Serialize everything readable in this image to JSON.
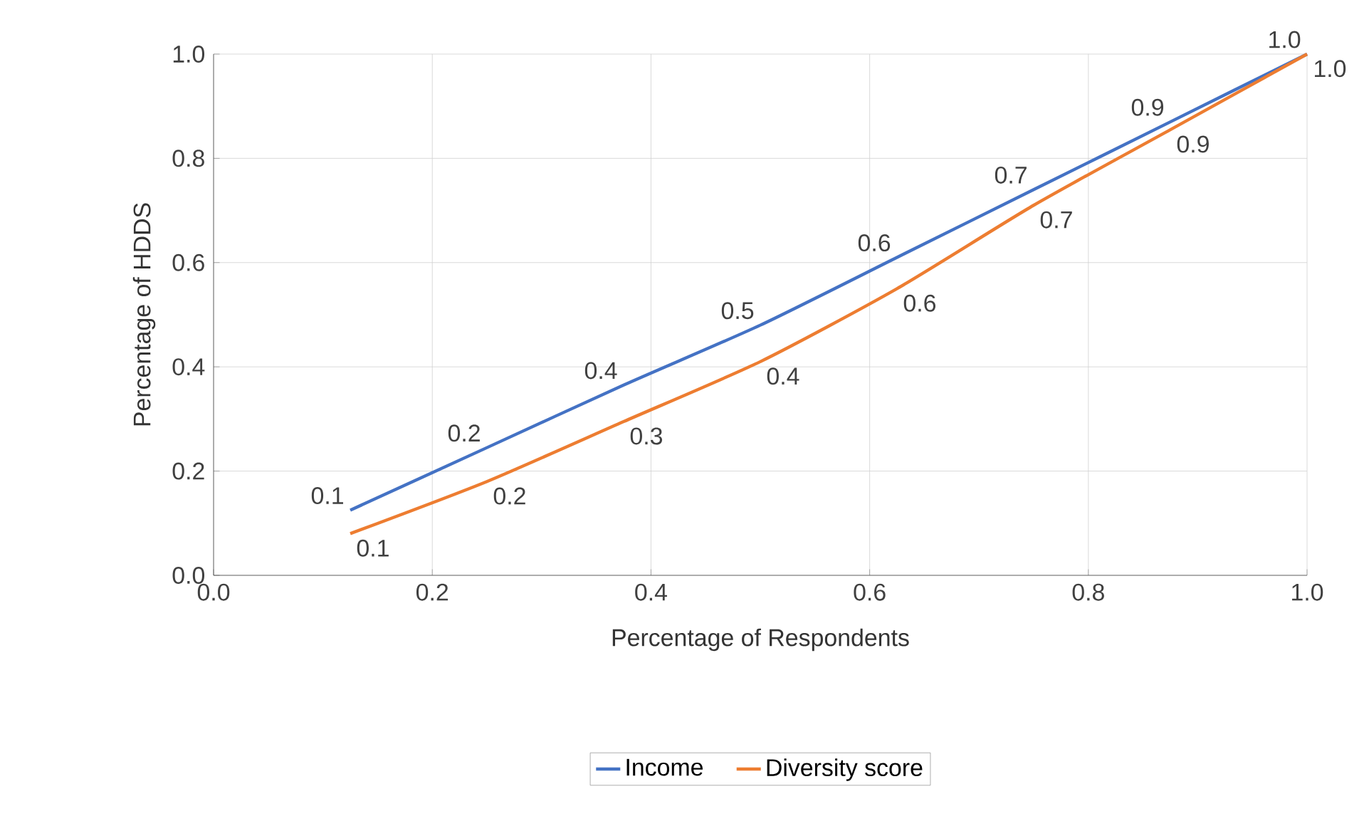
{
  "chart_data": {
    "type": "line",
    "xlabel": "Percentage of Respondents",
    "ylabel": "Percentage of HDDS",
    "x": [
      0.125,
      0.25,
      0.375,
      0.5,
      0.625,
      0.75,
      0.875,
      1.0
    ],
    "series": [
      {
        "name": "Income",
        "color": "#4472c4",
        "values": [
          0.125,
          0.245,
          0.365,
          0.48,
          0.61,
          0.74,
          0.87,
          1.0
        ],
        "value_labels": [
          "0.1",
          "0.2",
          "0.4",
          "0.5",
          "0.6",
          "0.7",
          "0.9",
          "1.0"
        ]
      },
      {
        "name": "Diversity score",
        "color": "#ed7d31",
        "values": [
          0.08,
          0.18,
          0.295,
          0.41,
          0.55,
          0.71,
          0.855,
          1.0
        ],
        "value_labels": [
          "0.1",
          "0.2",
          "0.3",
          "0.4",
          "0.6",
          "0.7",
          "0.9",
          "1.0"
        ]
      }
    ],
    "xlim": [
      0,
      1
    ],
    "ylim": [
      0,
      1
    ],
    "xticks": [
      {
        "value": 0,
        "label": "0.0"
      },
      0.2,
      0.4,
      0.6,
      0.8,
      {
        "value": 1,
        "label": "1.0"
      }
    ],
    "yticks": [
      {
        "value": 0,
        "label": "0.0"
      },
      0.2,
      0.4,
      0.6,
      0.8,
      {
        "value": 1,
        "label": "1.0"
      }
    ],
    "grid": true,
    "legend": "bottom"
  }
}
